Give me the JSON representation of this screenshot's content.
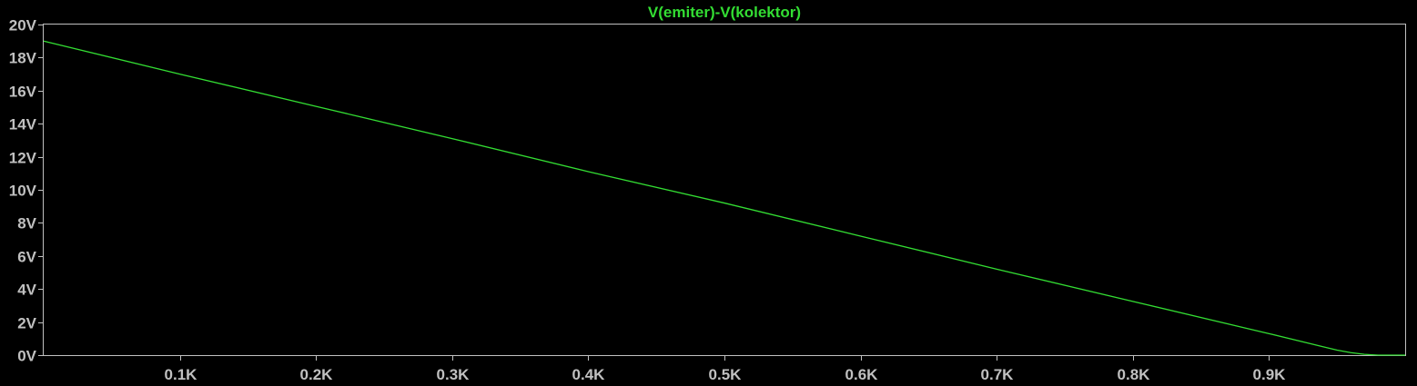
{
  "chart_data": {
    "type": "line",
    "title": "V(emiter)-V(kolektor)",
    "xlabel": "",
    "ylabel": "",
    "xlim": [
      0,
      1000
    ],
    "ylim": [
      0,
      20
    ],
    "x_ticks": [
      {
        "value": 100,
        "label": "0.1K"
      },
      {
        "value": 200,
        "label": "0.2K"
      },
      {
        "value": 300,
        "label": "0.3K"
      },
      {
        "value": 400,
        "label": "0.4K"
      },
      {
        "value": 500,
        "label": "0.5K"
      },
      {
        "value": 600,
        "label": "0.6K"
      },
      {
        "value": 700,
        "label": "0.7K"
      },
      {
        "value": 800,
        "label": "0.8K"
      },
      {
        "value": 900,
        "label": "0.9K"
      }
    ],
    "y_ticks": [
      {
        "value": 0,
        "label": "0V"
      },
      {
        "value": 2,
        "label": "2V"
      },
      {
        "value": 4,
        "label": "4V"
      },
      {
        "value": 6,
        "label": "6V"
      },
      {
        "value": 8,
        "label": "8V"
      },
      {
        "value": 10,
        "label": "10V"
      },
      {
        "value": 12,
        "label": "12V"
      },
      {
        "value": 14,
        "label": "14V"
      },
      {
        "value": 16,
        "label": "16V"
      },
      {
        "value": 18,
        "label": "18V"
      },
      {
        "value": 20,
        "label": "20V"
      }
    ],
    "grid": false,
    "series": [
      {
        "color": "#33dd33",
        "x": [
          0,
          100,
          200,
          300,
          400,
          500,
          600,
          700,
          800,
          900,
          930,
          950,
          960,
          970,
          980,
          1000
        ],
        "y": [
          19.0,
          17.0,
          15.05,
          13.1,
          11.1,
          9.2,
          7.2,
          5.2,
          3.25,
          1.3,
          0.7,
          0.3,
          0.15,
          0.05,
          0.0,
          0.0
        ]
      }
    ],
    "colors": {
      "background": "#000000",
      "axis": "#c0c0c0",
      "trace": "#33dd33",
      "title": "#33dd33"
    }
  }
}
